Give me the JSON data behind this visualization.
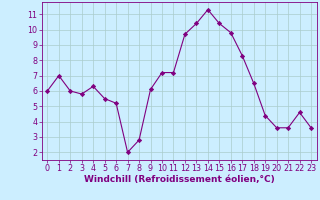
{
  "x": [
    0,
    1,
    2,
    3,
    4,
    5,
    6,
    7,
    8,
    9,
    10,
    11,
    12,
    13,
    14,
    15,
    16,
    17,
    18,
    19,
    20,
    21,
    22,
    23
  ],
  "y": [
    6.0,
    7.0,
    6.0,
    5.8,
    6.3,
    5.5,
    5.2,
    2.0,
    2.8,
    6.1,
    7.2,
    7.2,
    9.7,
    10.4,
    11.3,
    10.4,
    9.8,
    8.3,
    6.5,
    4.4,
    3.6,
    3.6,
    4.6,
    3.6
  ],
  "line_color": "#800080",
  "marker": "D",
  "marker_size": 2.2,
  "bg_color": "#cceeff",
  "grid_color": "#aacccc",
  "xlabel": "Windchill (Refroidissement éolien,°C)",
  "xlabel_fontsize": 6.5,
  "tick_fontsize": 5.8,
  "ylim": [
    1.5,
    11.8
  ],
  "xlim": [
    -0.5,
    23.5
  ],
  "yticks": [
    2,
    3,
    4,
    5,
    6,
    7,
    8,
    9,
    10,
    11
  ],
  "xticks": [
    0,
    1,
    2,
    3,
    4,
    5,
    6,
    7,
    8,
    9,
    10,
    11,
    12,
    13,
    14,
    15,
    16,
    17,
    18,
    19,
    20,
    21,
    22,
    23
  ]
}
